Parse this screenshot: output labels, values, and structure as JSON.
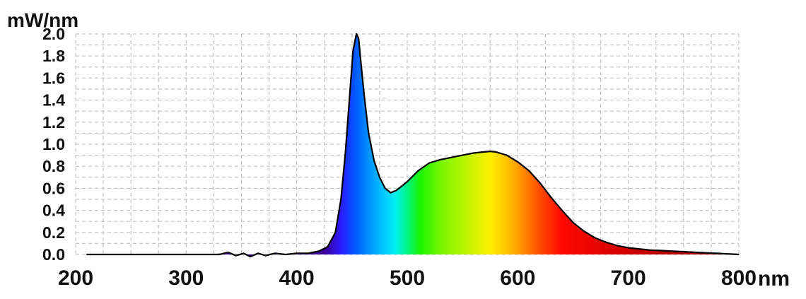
{
  "chart_data": {
    "type": "area",
    "title": "",
    "ylabel": "mW/nm",
    "xlabel": "nm",
    "xlim": [
      200,
      800
    ],
    "ylim": [
      0,
      2.0
    ],
    "grid": true,
    "legend": "none",
    "x_ticks": [
      "200",
      "300",
      "400",
      "500",
      "600",
      "700",
      "800"
    ],
    "y_ticks": [
      "0.0",
      "0.2",
      "0.4",
      "0.6",
      "0.8",
      "1.0",
      "1.2",
      "1.4",
      "1.6",
      "1.8",
      "2.0"
    ],
    "line_color": "#000000",
    "series": [
      {
        "x": [
          210,
          300,
          330,
          338,
          345,
          352,
          358,
          365,
          372,
          380,
          390,
          400,
          410,
          420,
          428,
          435,
          440,
          444,
          448,
          451,
          454,
          456,
          458,
          461,
          465,
          470,
          475,
          480,
          485,
          490,
          500,
          510,
          520,
          530,
          540,
          550,
          560,
          570,
          575,
          580,
          590,
          600,
          610,
          620,
          630,
          640,
          650,
          660,
          670,
          680,
          690,
          700,
          710,
          720,
          730,
          740,
          750,
          760,
          770,
          780,
          790,
          800
        ],
        "y": [
          0.0,
          0.0,
          0.0,
          0.02,
          -0.01,
          0.01,
          -0.02,
          0.01,
          -0.01,
          0.01,
          0.0,
          0.01,
          0.01,
          0.03,
          0.07,
          0.2,
          0.5,
          0.92,
          1.45,
          1.85,
          2.0,
          1.96,
          1.75,
          1.45,
          1.1,
          0.85,
          0.7,
          0.6,
          0.56,
          0.58,
          0.66,
          0.76,
          0.83,
          0.86,
          0.88,
          0.9,
          0.92,
          0.93,
          0.935,
          0.93,
          0.9,
          0.84,
          0.76,
          0.65,
          0.52,
          0.4,
          0.29,
          0.21,
          0.15,
          0.11,
          0.08,
          0.06,
          0.05,
          0.04,
          0.035,
          0.03,
          0.025,
          0.02,
          0.015,
          0.01,
          0.005,
          0.0
        ]
      }
    ],
    "spectrum_colors": [
      {
        "nm": 425,
        "color": "#3a0096"
      },
      {
        "nm": 440,
        "color": "#2a1aff"
      },
      {
        "nm": 452,
        "color": "#0055ff"
      },
      {
        "nm": 465,
        "color": "#0091ff"
      },
      {
        "nm": 480,
        "color": "#00cbff"
      },
      {
        "nm": 490,
        "color": "#00f2ee"
      },
      {
        "nm": 500,
        "color": "#00f582"
      },
      {
        "nm": 512,
        "color": "#1cf500"
      },
      {
        "nm": 530,
        "color": "#76f500"
      },
      {
        "nm": 555,
        "color": "#c4f500"
      },
      {
        "nm": 575,
        "color": "#fff000"
      },
      {
        "nm": 590,
        "color": "#ffc400"
      },
      {
        "nm": 605,
        "color": "#ff8c00"
      },
      {
        "nm": 620,
        "color": "#ff4c00"
      },
      {
        "nm": 640,
        "color": "#ff0800"
      },
      {
        "nm": 700,
        "color": "#d00000"
      },
      {
        "nm": 780,
        "color": "#9b0000"
      }
    ]
  }
}
